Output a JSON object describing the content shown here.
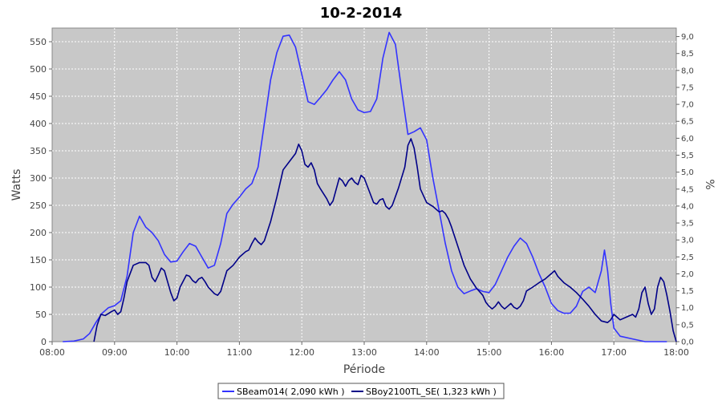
{
  "chart_data": {
    "type": "line",
    "title": "10-2-2014",
    "xlabel": "Période",
    "ylabel": "Watts",
    "y2label": "%",
    "xlim": [
      8.0,
      18.0
    ],
    "ylim": [
      0,
      575
    ],
    "y2lim": [
      0,
      9.25
    ],
    "x_ticks": [
      "08:00",
      "09:00",
      "10:00",
      "11:00",
      "12:00",
      "13:00",
      "14:00",
      "15:00",
      "16:00",
      "17:00",
      "18:00"
    ],
    "y_ticks": [
      0,
      50,
      100,
      150,
      200,
      250,
      300,
      350,
      400,
      450,
      500,
      550
    ],
    "y2_ticks": [
      "0,0",
      "0,5",
      "1,0",
      "1,5",
      "2,0",
      "2,5",
      "3,0",
      "3,5",
      "4,0",
      "4,5",
      "5,0",
      "5,5",
      "6,0",
      "6,5",
      "7,0",
      "7,5",
      "8,0",
      "8,5",
      "9,0"
    ],
    "grid": true,
    "legend_position": "bottom",
    "series": [
      {
        "name": "SBeam014( 2,090 kWh )",
        "color": "#3333ff",
        "points": [
          [
            8.17,
            0
          ],
          [
            8.35,
            1
          ],
          [
            8.5,
            5
          ],
          [
            8.6,
            15
          ],
          [
            8.7,
            35
          ],
          [
            8.8,
            52
          ],
          [
            8.9,
            62
          ],
          [
            9.0,
            66
          ],
          [
            9.1,
            75
          ],
          [
            9.2,
            120
          ],
          [
            9.3,
            200
          ],
          [
            9.4,
            230
          ],
          [
            9.5,
            210
          ],
          [
            9.6,
            200
          ],
          [
            9.7,
            185
          ],
          [
            9.8,
            160
          ],
          [
            9.9,
            146
          ],
          [
            10.0,
            148
          ],
          [
            10.1,
            165
          ],
          [
            10.2,
            180
          ],
          [
            10.3,
            175
          ],
          [
            10.4,
            155
          ],
          [
            10.5,
            135
          ],
          [
            10.6,
            140
          ],
          [
            10.7,
            180
          ],
          [
            10.8,
            235
          ],
          [
            10.9,
            252
          ],
          [
            11.0,
            265
          ],
          [
            11.1,
            280
          ],
          [
            11.2,
            290
          ],
          [
            11.3,
            320
          ],
          [
            11.4,
            400
          ],
          [
            11.5,
            480
          ],
          [
            11.6,
            530
          ],
          [
            11.7,
            560
          ],
          [
            11.8,
            562
          ],
          [
            11.9,
            540
          ],
          [
            12.0,
            490
          ],
          [
            12.1,
            440
          ],
          [
            12.2,
            435
          ],
          [
            12.3,
            448
          ],
          [
            12.4,
            462
          ],
          [
            12.5,
            480
          ],
          [
            12.6,
            495
          ],
          [
            12.7,
            480
          ],
          [
            12.8,
            445
          ],
          [
            12.9,
            425
          ],
          [
            13.0,
            420
          ],
          [
            13.1,
            422
          ],
          [
            13.2,
            445
          ],
          [
            13.3,
            520
          ],
          [
            13.4,
            567
          ],
          [
            13.5,
            545
          ],
          [
            13.6,
            460
          ],
          [
            13.7,
            380
          ],
          [
            13.8,
            385
          ],
          [
            13.9,
            392
          ],
          [
            14.0,
            370
          ],
          [
            14.1,
            300
          ],
          [
            14.2,
            240
          ],
          [
            14.3,
            180
          ],
          [
            14.4,
            130
          ],
          [
            14.5,
            100
          ],
          [
            14.6,
            88
          ],
          [
            14.7,
            93
          ],
          [
            14.8,
            97
          ],
          [
            14.9,
            92
          ],
          [
            15.0,
            90
          ],
          [
            15.1,
            105
          ],
          [
            15.2,
            130
          ],
          [
            15.3,
            155
          ],
          [
            15.4,
            175
          ],
          [
            15.5,
            190
          ],
          [
            15.6,
            180
          ],
          [
            15.7,
            155
          ],
          [
            15.8,
            125
          ],
          [
            15.9,
            100
          ],
          [
            16.0,
            70
          ],
          [
            16.1,
            57
          ],
          [
            16.2,
            52
          ],
          [
            16.3,
            52
          ],
          [
            16.4,
            65
          ],
          [
            16.5,
            92
          ],
          [
            16.6,
            100
          ],
          [
            16.7,
            90
          ],
          [
            16.8,
            130
          ],
          [
            16.85,
            168
          ],
          [
            16.9,
            130
          ],
          [
            16.95,
            70
          ],
          [
            17.0,
            25
          ],
          [
            17.1,
            10
          ],
          [
            17.3,
            5
          ],
          [
            17.5,
            0
          ],
          [
            17.85,
            0
          ]
        ]
      },
      {
        "name": "SBoy2100TL_SE( 1,323 kWh )",
        "color": "#000088",
        "points": [
          [
            8.67,
            0
          ],
          [
            8.72,
            30
          ],
          [
            8.78,
            50
          ],
          [
            8.85,
            48
          ],
          [
            8.95,
            55
          ],
          [
            9.0,
            58
          ],
          [
            9.05,
            50
          ],
          [
            9.1,
            55
          ],
          [
            9.15,
            80
          ],
          [
            9.2,
            110
          ],
          [
            9.3,
            140
          ],
          [
            9.4,
            145
          ],
          [
            9.5,
            145
          ],
          [
            9.55,
            140
          ],
          [
            9.6,
            118
          ],
          [
            9.65,
            110
          ],
          [
            9.7,
            122
          ],
          [
            9.75,
            135
          ],
          [
            9.8,
            130
          ],
          [
            9.9,
            90
          ],
          [
            9.95,
            75
          ],
          [
            10.0,
            80
          ],
          [
            10.05,
            100
          ],
          [
            10.15,
            122
          ],
          [
            10.2,
            120
          ],
          [
            10.25,
            112
          ],
          [
            10.3,
            108
          ],
          [
            10.35,
            115
          ],
          [
            10.4,
            118
          ],
          [
            10.45,
            110
          ],
          [
            10.5,
            100
          ],
          [
            10.6,
            88
          ],
          [
            10.65,
            85
          ],
          [
            10.7,
            92
          ],
          [
            10.8,
            130
          ],
          [
            10.9,
            140
          ],
          [
            11.0,
            155
          ],
          [
            11.1,
            165
          ],
          [
            11.15,
            168
          ],
          [
            11.2,
            180
          ],
          [
            11.25,
            190
          ],
          [
            11.3,
            183
          ],
          [
            11.35,
            178
          ],
          [
            11.4,
            185
          ],
          [
            11.5,
            220
          ],
          [
            11.6,
            265
          ],
          [
            11.7,
            315
          ],
          [
            11.8,
            330
          ],
          [
            11.9,
            345
          ],
          [
            11.95,
            362
          ],
          [
            12.0,
            350
          ],
          [
            12.05,
            325
          ],
          [
            12.1,
            320
          ],
          [
            12.15,
            328
          ],
          [
            12.2,
            315
          ],
          [
            12.25,
            290
          ],
          [
            12.3,
            280
          ],
          [
            12.4,
            262
          ],
          [
            12.45,
            250
          ],
          [
            12.5,
            258
          ],
          [
            12.6,
            300
          ],
          [
            12.65,
            295
          ],
          [
            12.7,
            285
          ],
          [
            12.75,
            295
          ],
          [
            12.8,
            300
          ],
          [
            12.85,
            292
          ],
          [
            12.9,
            288
          ],
          [
            12.95,
            305
          ],
          [
            13.0,
            300
          ],
          [
            13.1,
            270
          ],
          [
            13.15,
            255
          ],
          [
            13.2,
            252
          ],
          [
            13.25,
            260
          ],
          [
            13.3,
            262
          ],
          [
            13.35,
            248
          ],
          [
            13.4,
            243
          ],
          [
            13.45,
            250
          ],
          [
            13.55,
            282
          ],
          [
            13.65,
            320
          ],
          [
            13.7,
            360
          ],
          [
            13.75,
            372
          ],
          [
            13.8,
            355
          ],
          [
            13.85,
            320
          ],
          [
            13.9,
            280
          ],
          [
            14.0,
            255
          ],
          [
            14.1,
            248
          ],
          [
            14.15,
            243
          ],
          [
            14.2,
            238
          ],
          [
            14.25,
            240
          ],
          [
            14.3,
            235
          ],
          [
            14.35,
            225
          ],
          [
            14.4,
            210
          ],
          [
            14.5,
            175
          ],
          [
            14.6,
            140
          ],
          [
            14.7,
            115
          ],
          [
            14.8,
            98
          ],
          [
            14.9,
            85
          ],
          [
            14.95,
            72
          ],
          [
            15.0,
            65
          ],
          [
            15.05,
            60
          ],
          [
            15.1,
            65
          ],
          [
            15.15,
            73
          ],
          [
            15.2,
            65
          ],
          [
            15.25,
            60
          ],
          [
            15.3,
            65
          ],
          [
            15.35,
            70
          ],
          [
            15.4,
            63
          ],
          [
            15.45,
            60
          ],
          [
            15.5,
            65
          ],
          [
            15.55,
            75
          ],
          [
            15.6,
            93
          ],
          [
            15.7,
            100
          ],
          [
            15.8,
            108
          ],
          [
            15.9,
            115
          ],
          [
            16.0,
            125
          ],
          [
            16.05,
            130
          ],
          [
            16.1,
            120
          ],
          [
            16.2,
            108
          ],
          [
            16.3,
            100
          ],
          [
            16.4,
            90
          ],
          [
            16.5,
            78
          ],
          [
            16.6,
            65
          ],
          [
            16.7,
            50
          ],
          [
            16.8,
            38
          ],
          [
            16.9,
            35
          ],
          [
            16.95,
            40
          ],
          [
            17.0,
            50
          ],
          [
            17.05,
            45
          ],
          [
            17.1,
            40
          ],
          [
            17.2,
            45
          ],
          [
            17.3,
            50
          ],
          [
            17.35,
            45
          ],
          [
            17.4,
            60
          ],
          [
            17.45,
            90
          ],
          [
            17.5,
            100
          ],
          [
            17.55,
            70
          ],
          [
            17.6,
            50
          ],
          [
            17.65,
            60
          ],
          [
            17.7,
            100
          ],
          [
            17.75,
            118
          ],
          [
            17.8,
            110
          ],
          [
            17.85,
            85
          ],
          [
            17.9,
            55
          ],
          [
            17.95,
            20
          ],
          [
            18.0,
            0
          ]
        ]
      }
    ]
  }
}
